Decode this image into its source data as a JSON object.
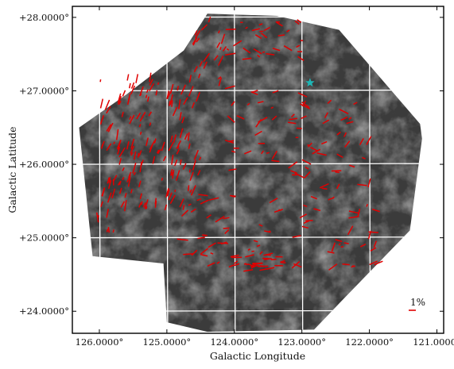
{
  "chart_data": {
    "type": "scatter",
    "xlabel": "Galactic Longitude",
    "ylabel": "Galactic Latitude",
    "x_ticks": [
      {
        "value": 126.0,
        "label": "126.0000°"
      },
      {
        "value": 125.0,
        "label": "125.0000°"
      },
      {
        "value": 124.0,
        "label": "124.0000°"
      },
      {
        "value": 123.0,
        "label": "123.0000°"
      },
      {
        "value": 122.0,
        "label": "122.0000°"
      },
      {
        "value": 121.0,
        "label": "121.0000°"
      }
    ],
    "y_ticks": [
      {
        "value": 28.0,
        "label": "+28.0000°"
      },
      {
        "value": 27.0,
        "label": "+27.0000°"
      },
      {
        "value": 26.0,
        "label": "+26.0000°"
      },
      {
        "value": 25.0,
        "label": "+25.0000°"
      },
      {
        "value": 24.0,
        "label": "+24.0000°"
      }
    ],
    "xlim": [
      126.4,
      120.9
    ],
    "ylim": [
      23.7,
      28.15
    ],
    "grid": true,
    "map_outline": [
      [
        123.37,
        28.02
      ],
      [
        122.45,
        27.83
      ],
      [
        121.25,
        26.55
      ],
      [
        121.22,
        26.35
      ],
      [
        121.4,
        25.1
      ],
      [
        122.35,
        24.2
      ],
      [
        122.82,
        23.75
      ],
      [
        124.4,
        23.72
      ],
      [
        125.0,
        23.85
      ],
      [
        125.05,
        24.65
      ],
      [
        126.1,
        24.75
      ],
      [
        126.3,
        26.5
      ],
      [
        125.6,
        26.95
      ],
      [
        124.75,
        27.55
      ],
      [
        124.4,
        28.05
      ]
    ],
    "star": {
      "x": 122.88,
      "y": 27.11,
      "color": "#1fb5b5"
    },
    "vector_regions": [
      {
        "lon": [
          124.5,
          126.0
        ],
        "lat": [
          25.4,
          27.2
        ],
        "count": 150,
        "angle": [
          58,
          84
        ]
      },
      {
        "lon": [
          124.1,
          124.6
        ],
        "lat": [
          27.1,
          28.0
        ],
        "count": 22,
        "angle": [
          40,
          75
        ]
      },
      {
        "lon": [
          123.0,
          124.2
        ],
        "lat": [
          27.4,
          28.0
        ],
        "count": 30,
        "angle": [
          -40,
          40
        ]
      },
      {
        "lon": [
          122.9,
          124.1
        ],
        "lat": [
          25.8,
          27.1
        ],
        "count": 40,
        "angle": [
          -50,
          60
        ]
      },
      {
        "lon": [
          122.0,
          123.0
        ],
        "lat": [
          25.6,
          26.9
        ],
        "count": 30,
        "angle": [
          -30,
          70
        ]
      },
      {
        "lon": [
          121.8,
          122.6
        ],
        "lat": [
          24.5,
          25.8
        ],
        "count": 26,
        "angle": [
          -20,
          80
        ]
      },
      {
        "lon": [
          122.7,
          124.8
        ],
        "lat": [
          24.6,
          25.6
        ],
        "count": 55,
        "angle": [
          -25,
          45
        ]
      },
      {
        "lon": [
          123.2,
          124.0
        ],
        "lat": [
          24.55,
          24.8
        ],
        "count": 25,
        "angle": [
          -10,
          20
        ]
      },
      {
        "lon": [
          125.75,
          126.05
        ],
        "lat": [
          25.0,
          25.9
        ],
        "count": 10,
        "angle": [
          70,
          100
        ]
      }
    ],
    "scale_bar": {
      "label": "1%",
      "length_pct": 1
    }
  },
  "colors": {
    "vector": "#e00000",
    "map_background": "#3b3b3b",
    "grid": "#ffffff",
    "axes": "#000000"
  }
}
